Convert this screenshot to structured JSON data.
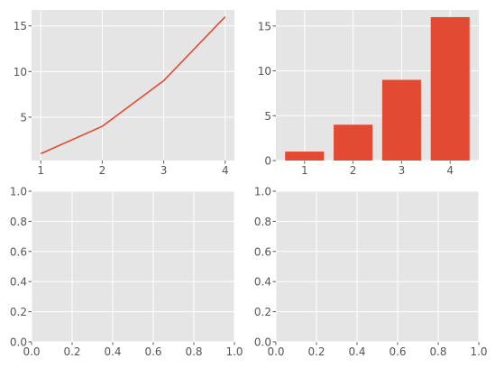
{
  "style": {
    "axes_bg": "#e5e5e5",
    "grid_color": "#ffffff",
    "series_color": "#e24a33",
    "tick_label_color": "#555555"
  },
  "chart_data": [
    {
      "type": "line",
      "title": "",
      "xlabel": "",
      "ylabel": "",
      "x": [
        1,
        2,
        3,
        4
      ],
      "series": [
        {
          "values": [
            1,
            4,
            9,
            16
          ]
        }
      ],
      "xlim": [
        0.85,
        4.15
      ],
      "ylim": [
        0.25,
        16.75
      ],
      "xticks": [
        1,
        2,
        3,
        4
      ],
      "yticks": [
        5,
        10,
        15
      ],
      "grid": true
    },
    {
      "type": "bar",
      "title": "",
      "xlabel": "",
      "ylabel": "",
      "categories": [
        1,
        2,
        3,
        4
      ],
      "values": [
        1,
        4,
        9,
        16
      ],
      "xlim": [
        0.41,
        4.59
      ],
      "ylim": [
        0,
        16.8
      ],
      "xticks": [
        1,
        2,
        3,
        4
      ],
      "yticks": [
        0,
        5,
        10,
        15
      ],
      "grid": true
    },
    {
      "type": "line",
      "title": "",
      "xlabel": "",
      "ylabel": "",
      "series": [],
      "xlim": [
        0,
        1
      ],
      "ylim": [
        0,
        1
      ],
      "xticks": [
        "0.0",
        "0.2",
        "0.4",
        "0.6",
        "0.8",
        "1.0"
      ],
      "yticks": [
        "0.0",
        "0.2",
        "0.4",
        "0.6",
        "0.8",
        "1.0"
      ],
      "grid": true
    },
    {
      "type": "line",
      "title": "",
      "xlabel": "",
      "ylabel": "",
      "series": [],
      "xlim": [
        0,
        1
      ],
      "ylim": [
        0,
        1
      ],
      "xticks": [
        "0.0",
        "0.2",
        "0.4",
        "0.6",
        "0.8",
        "1.0"
      ],
      "yticks": [
        "0.0",
        "0.2",
        "0.4",
        "0.6",
        "0.8",
        "1.0"
      ],
      "grid": true
    }
  ]
}
